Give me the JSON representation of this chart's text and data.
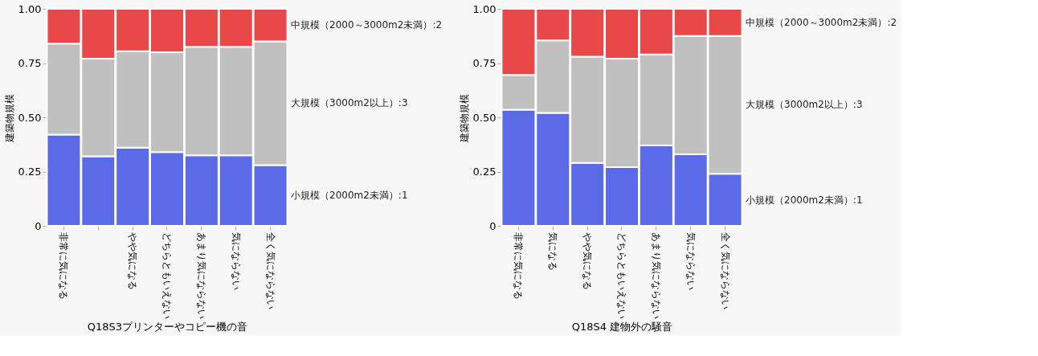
{
  "chart_data": [
    {
      "type": "bar",
      "stacked": true,
      "xlabel": "Q18S3プリンターやコピー機の音",
      "ylabel": "建築物規模",
      "categories": [
        "非常に気になる",
        null,
        "やや気になる",
        "どちらともいえない",
        "あまり気にならない",
        "気にならない",
        "全く気にならない"
      ],
      "series": [
        {
          "name": "小規模（2000m2未満）:1",
          "color": "#5b6ae6",
          "values": [
            0.42,
            0.32,
            0.36,
            0.34,
            0.325,
            0.325,
            0.28
          ]
        },
        {
          "name": "大規模（3000m2以上）:3",
          "color": "#c0c0c0",
          "values": [
            0.42,
            0.45,
            0.445,
            0.46,
            0.5,
            0.5,
            0.57
          ]
        },
        {
          "name": "中規模（2000～3000m2未満）:2",
          "color": "#e84848",
          "values": [
            0.16,
            0.23,
            0.195,
            0.2,
            0.175,
            0.175,
            0.15
          ]
        }
      ],
      "ylim": [
        0,
        1
      ],
      "yticks": [
        0,
        {
          "value": 0.25,
          "label": "0.25"
        },
        {
          "value": 0.5,
          "label": "0.50"
        },
        {
          "value": 0.75,
          "label": "0.75"
        },
        {
          "value": 1,
          "label": "1.00"
        }
      ],
      "grid": false,
      "legend": false
    },
    {
      "type": "bar",
      "stacked": true,
      "xlabel": "Q18S4 建物外の騒音",
      "ylabel": "建築物規模",
      "categories": [
        "非常に気になる",
        "気になる",
        "やや気になる",
        "どちらともいえない",
        "あまり気にならない",
        "気にならない",
        "全く気にならない"
      ],
      "series": [
        {
          "name": "小規模（2000m2未満）:1",
          "color": "#5b6ae6",
          "values": [
            0.535,
            0.52,
            0.29,
            0.27,
            0.37,
            0.33,
            0.24
          ]
        },
        {
          "name": "大規模（3000m2以上）:3",
          "color": "#c0c0c0",
          "values": [
            0.16,
            0.335,
            0.49,
            0.5,
            0.42,
            0.545,
            0.635
          ]
        },
        {
          "name": "中規模（2000～3000m2未満）:2",
          "color": "#e84848",
          "values": [
            0.305,
            0.145,
            0.22,
            0.23,
            0.21,
            0.125,
            0.125
          ]
        }
      ],
      "ylim": [
        0,
        1
      ],
      "yticks": [
        0,
        {
          "value": 0.25,
          "label": "0.25"
        },
        {
          "value": 0.5,
          "label": "0.50"
        },
        {
          "value": 0.75,
          "label": "0.75"
        },
        {
          "value": 1,
          "label": "1.00"
        }
      ],
      "grid": false,
      "legend": false
    }
  ]
}
